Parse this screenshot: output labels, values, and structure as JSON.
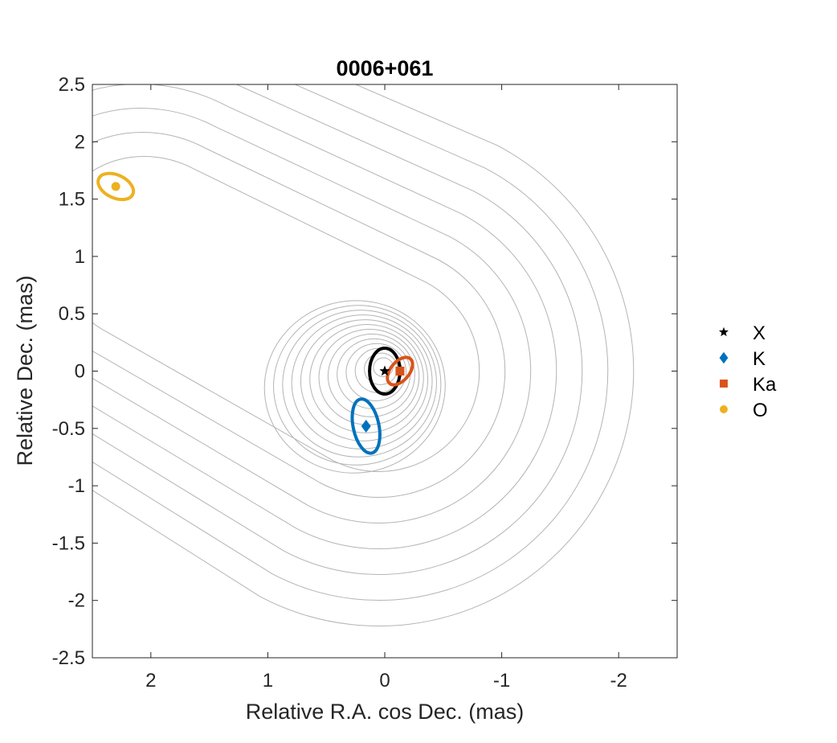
{
  "chart_data": {
    "type": "scatter",
    "title": "0006+061",
    "xlabel": "Relative R.A. cos Dec. (mas)",
    "ylabel": "Relative Dec. (mas)",
    "xlim": [
      2.5,
      -2.5
    ],
    "ylim": [
      -2.5,
      2.5
    ],
    "x_reversed": true,
    "x_ticks": [
      2,
      1,
      0,
      -1,
      -2
    ],
    "x_tick_labels": [
      "2",
      "1",
      "0",
      "-1",
      "-2"
    ],
    "y_ticks": [
      2.5,
      2,
      1.5,
      1,
      0.5,
      0,
      -0.5,
      -1,
      -1.5,
      -2,
      -2.5
    ],
    "y_tick_labels": [
      "2.5",
      "2",
      "1.5",
      "1",
      "0.5",
      "0",
      "-0.5",
      "-1",
      "-1.5",
      "-2",
      "-2.5"
    ],
    "grid": false,
    "box": true,
    "legend_position": "outside-right",
    "contours": {
      "color": "#b4b4b4",
      "core": {
        "x": 0.05,
        "y": 0.0
      },
      "jet": {
        "x": 2.0,
        "y": 1.05
      },
      "inner_levels": 13,
      "outer_levels": 7
    },
    "series": [
      {
        "name": "X",
        "marker": "star",
        "color": "#000000",
        "x": 0.0,
        "y": 0.0,
        "ellipse": {
          "a": 0.13,
          "b": 0.2,
          "angle": 0
        }
      },
      {
        "name": "K",
        "marker": "diamond",
        "color": "#0072BD",
        "x": 0.16,
        "y": -0.48,
        "ellipse": {
          "a": 0.11,
          "b": 0.24,
          "angle": -12
        }
      },
      {
        "name": "Ka",
        "marker": "square",
        "color": "#D95319",
        "x": -0.13,
        "y": 0.0,
        "ellipse": {
          "a": 0.08,
          "b": 0.14,
          "angle": 40
        }
      },
      {
        "name": "O",
        "marker": "circle",
        "color": "#EDB120",
        "x": 2.3,
        "y": 1.61,
        "ellipse": {
          "a": 0.16,
          "b": 0.1,
          "angle": 25
        }
      }
    ]
  }
}
